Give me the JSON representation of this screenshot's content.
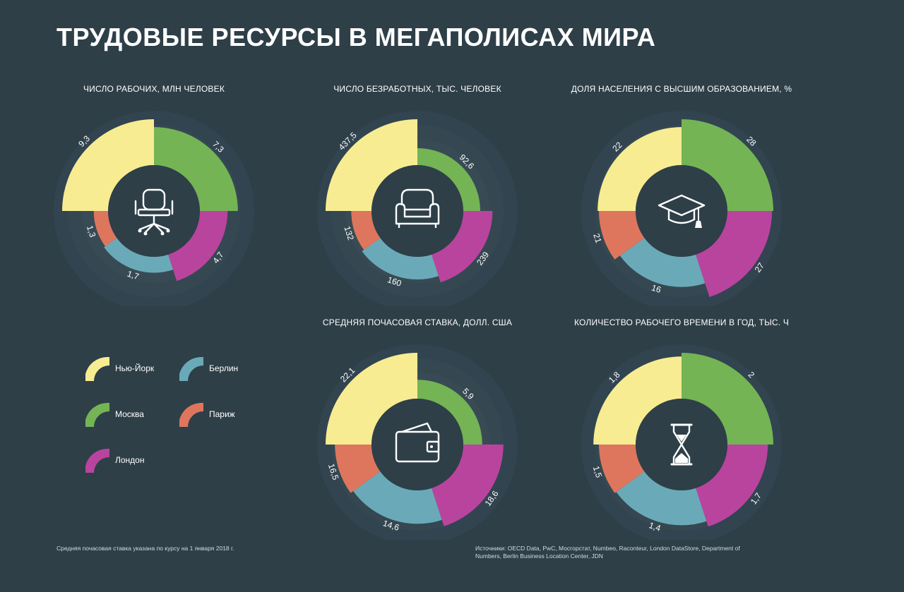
{
  "title": "ТРУДОВЫЕ РЕСУРСЫ В МЕГАПОЛИСАХ МИРА",
  "colors": {
    "background": "#2e3f48",
    "center": "#2e3f48",
    "ring_faint": "#354750",
    "ny": "#f7ec92",
    "moscow": "#74b455",
    "london": "#b9449e",
    "berlin": "#6aaab8",
    "paris": "#de765e"
  },
  "legend": [
    {
      "key": "ny",
      "label": "Нью-Йорк"
    },
    {
      "key": "berlin",
      "label": "Берлин"
    },
    {
      "key": "moscow",
      "label": "Москва"
    },
    {
      "key": "paris",
      "label": "Париж"
    },
    {
      "key": "london",
      "label": "Лондон"
    }
  ],
  "chart_data": [
    {
      "type": "pie",
      "variant": "rose",
      "title": "ЧИСЛО РАБОЧИХ, МЛН ЧЕЛОВЕК",
      "icon": "office-chair-icon",
      "series_order": [
        "Нью-Йорк",
        "Москва",
        "Лондон",
        "Берлин",
        "Париж"
      ],
      "categories": [
        "Нью-Йорк",
        "Москва",
        "Лондон",
        "Берлин",
        "Париж"
      ],
      "values": [
        9.3,
        7.3,
        4.7,
        1.7,
        1.3
      ],
      "labels": [
        "9,3",
        "7,3",
        "4,7",
        "1,7",
        "1,3"
      ],
      "max": 9.3
    },
    {
      "type": "pie",
      "variant": "rose",
      "title": "ЧИСЛО БЕЗРАБОТНЫХ, ТЫС. ЧЕЛОВЕК",
      "icon": "armchair-icon",
      "categories": [
        "Нью-Йорк",
        "Москва",
        "Лондон",
        "Берлин",
        "Париж"
      ],
      "values": [
        437.5,
        92.6,
        239,
        160,
        132
      ],
      "labels": [
        "437,5",
        "92,6",
        "239",
        "160",
        "132"
      ],
      "max": 437.5
    },
    {
      "type": "pie",
      "variant": "rose",
      "title": "ДОЛЯ НАСЕЛЕНИЯ С ВЫСШИМ ОБРАЗОВАНИЕМ, %",
      "icon": "graduation-cap-icon",
      "categories": [
        "Нью-Йорк",
        "Москва",
        "Лондон",
        "Берлин",
        "Париж"
      ],
      "values": [
        22,
        28,
        27,
        16,
        21
      ],
      "labels": [
        "22",
        "28",
        "27",
        "16",
        "21"
      ],
      "max": 28
    },
    {
      "type": "pie",
      "variant": "rose",
      "title": "СРЕДНЯЯ ПОЧАСОВАЯ СТАВКА, ДОЛЛ. США",
      "icon": "wallet-icon",
      "categories": [
        "Нью-Йорк",
        "Москва",
        "Лондон",
        "Берлин",
        "Париж"
      ],
      "values": [
        22.1,
        5.9,
        18.6,
        14.6,
        16.5
      ],
      "labels": [
        "22,1",
        "5,9",
        "18,6",
        "14,6",
        "16,5"
      ],
      "max": 22.1
    },
    {
      "type": "pie",
      "variant": "rose",
      "title": "КОЛИЧЕСТВО РАБОЧЕГО ВРЕМЕНИ В ГОД, ТЫС. Ч",
      "icon": "hourglass-icon",
      "categories": [
        "Нью-Йорк",
        "Москва",
        "Лондон",
        "Берлин",
        "Париж"
      ],
      "values": [
        1.8,
        2,
        1.7,
        1.4,
        1.5
      ],
      "labels": [
        "1,8",
        "2",
        "1,7",
        "1,4",
        "1,5"
      ],
      "max": 2
    }
  ],
  "footnote": "Средняя почасовая ставка указана по курсу на 1 января 2018 г.",
  "sources": "Источники: OECD Data, PwC, Мосгорстат, Numbeo, Raconteur, London DataStore, Department of Numbers, Berlin Business Location Center, JDN"
}
